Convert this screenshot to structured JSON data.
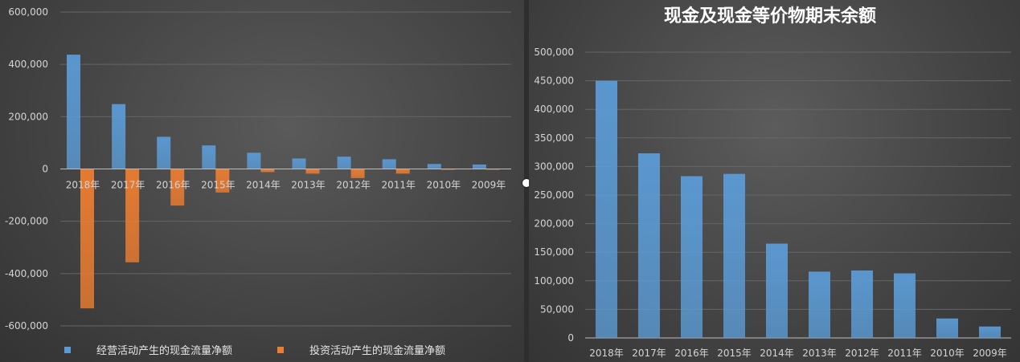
{
  "colors": {
    "operating": "#5b9bd5",
    "investing": "#ed7d31",
    "bar_right": "#5b9bd5",
    "grid": "#666666",
    "text": "#d4d4d4"
  },
  "chart_data": [
    {
      "type": "bar",
      "title": "",
      "categories": [
        "2018年",
        "2017年",
        "2016年",
        "2015年",
        "2014年",
        "2013年",
        "2012年",
        "2011年",
        "2010年",
        "2009年"
      ],
      "series": [
        {
          "name": "经营活动产生的现金流量净额",
          "values": [
            437000,
            248000,
            123000,
            90000,
            62000,
            40000,
            47000,
            37000,
            19000,
            17000
          ]
        },
        {
          "name": "投资活动产生的现金流量净额",
          "values": [
            -533000,
            -357000,
            -140000,
            -90000,
            -12000,
            -18000,
            -35000,
            -18000,
            -2000,
            -1000
          ]
        }
      ],
      "yticks": [
        "600,000",
        "400,000",
        "200,000",
        "0",
        "-200,000",
        "-400,000",
        "-600,000"
      ],
      "ylim": [
        -600000,
        600000
      ],
      "grid": true,
      "legend": "bottom"
    },
    {
      "type": "bar",
      "title": "现金及现金等价物期末余额",
      "categories": [
        "2018年",
        "2017年",
        "2016年",
        "2015年",
        "2014年",
        "2013年",
        "2012年",
        "2011年",
        "2010年",
        "2009年"
      ],
      "values": [
        450000,
        323000,
        283000,
        287000,
        165000,
        116000,
        118000,
        113000,
        34000,
        20000
      ],
      "yticks": [
        "500,000",
        "450,000",
        "400,000",
        "350,000",
        "300,000",
        "250,000",
        "200,000",
        "150,000",
        "100,000",
        "50,000",
        "0"
      ],
      "ylim": [
        0,
        500000
      ],
      "grid": true,
      "legend": "none"
    }
  ]
}
